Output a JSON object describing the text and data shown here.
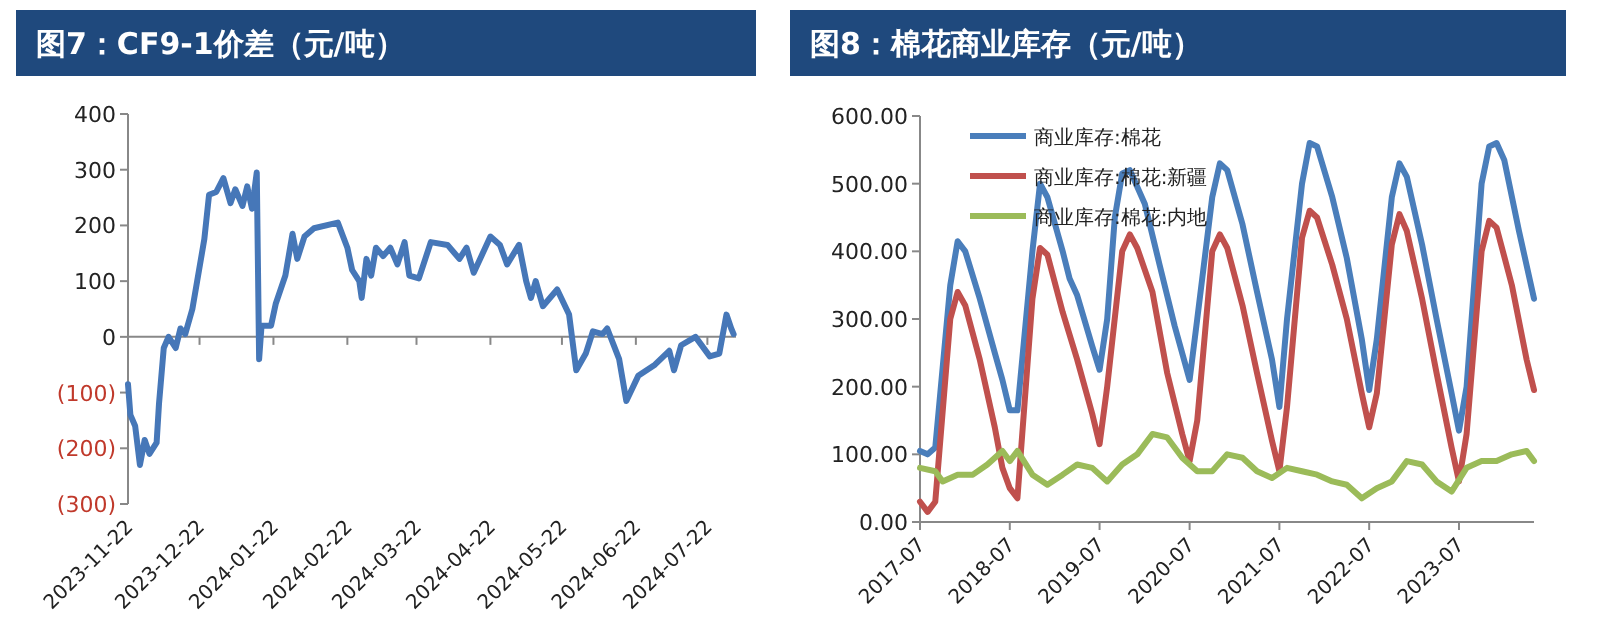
{
  "chart_data": [
    {
      "type": "line",
      "title": "图7：CF9-1价差（元/吨）",
      "x": [
        "2023-11-22",
        "2023-11-23",
        "2023-11-25",
        "2023-11-27",
        "2023-11-29",
        "2023-12-01",
        "2023-12-04",
        "2023-12-05",
        "2023-12-07",
        "2023-12-09",
        "2023-12-12",
        "2023-12-14",
        "2023-12-16",
        "2023-12-19",
        "2023-12-21",
        "2023-12-24",
        "2023-12-26",
        "2023-12-29",
        "2024-01-01",
        "2024-01-04",
        "2024-01-06",
        "2024-01-09",
        "2024-01-11",
        "2024-01-13",
        "2024-01-15",
        "2024-01-16",
        "2024-01-17",
        "2024-01-21",
        "2024-01-23",
        "2024-01-27",
        "2024-01-30",
        "2024-02-01",
        "2024-02-04",
        "2024-02-08",
        "2024-02-18",
        "2024-02-22",
        "2024-02-24",
        "2024-02-27",
        "2024-02-28",
        "2024-03-01",
        "2024-03-03",
        "2024-03-05",
        "2024-03-08",
        "2024-03-11",
        "2024-03-14",
        "2024-03-17",
        "2024-03-19",
        "2024-03-23",
        "2024-03-28",
        "2024-04-04",
        "2024-04-09",
        "2024-04-12",
        "2024-04-15",
        "2024-04-22",
        "2024-04-26",
        "2024-04-29",
        "2024-05-04",
        "2024-05-07",
        "2024-05-09",
        "2024-05-11",
        "2024-05-14",
        "2024-05-20",
        "2024-05-25",
        "2024-05-28",
        "2024-06-01",
        "2024-06-04",
        "2024-06-08",
        "2024-06-10",
        "2024-06-15",
        "2024-06-18",
        "2024-06-23",
        "2024-06-30",
        "2024-07-06",
        "2024-07-08",
        "2024-07-11",
        "2024-07-17",
        "2024-07-23",
        "2024-07-27",
        "2024-07-30",
        "2024-08-01",
        "2024-08-02"
      ],
      "series": [
        {
          "color": "#4677b8",
          "values": [
            -85,
            -140,
            -160,
            -230,
            -185,
            -210,
            -190,
            -120,
            -20,
            0,
            -20,
            15,
            5,
            50,
            100,
            175,
            255,
            260,
            285,
            240,
            265,
            235,
            270,
            230,
            295,
            -40,
            20,
            20,
            60,
            110,
            185,
            140,
            180,
            195,
            205,
            160,
            120,
            100,
            70,
            140,
            110,
            160,
            145,
            160,
            130,
            170,
            110,
            105,
            170,
            165,
            140,
            160,
            115,
            180,
            165,
            130,
            165,
            100,
            70,
            100,
            55,
            85,
            40,
            -60,
            -30,
            10,
            5,
            15,
            -40,
            -115,
            -70,
            -50,
            -25,
            -60,
            -15,
            0,
            -35,
            -30,
            40,
            15,
            5
          ]
        }
      ],
      "xlim": [
        "2023-11-22",
        "2024-08-03"
      ],
      "xticks": [
        "2023-11-22",
        "2023-12-22",
        "2024-01-22",
        "2024-02-22",
        "2024-03-22",
        "2024-04-22",
        "2024-05-22",
        "2024-06-22",
        "2024-07-22"
      ],
      "ylim": [
        -300,
        400
      ],
      "yticks": [
        {
          "value": -300,
          "label": "(300)"
        },
        {
          "value": -200,
          "label": "(200)"
        },
        {
          "value": -100,
          "label": "(100)"
        },
        0,
        100,
        200,
        300,
        400
      ]
    },
    {
      "type": "line",
      "title": "图8：棉花商业库存（元/吨）",
      "legend": "top left",
      "grid": false,
      "series": [
        {
          "name": "商业库存:棉花",
          "color": "#4a7ebb",
          "x": [
            "2017-07",
            "2017-08",
            "2017-09",
            "2017-11",
            "2017-12",
            "2018-01",
            "2018-03",
            "2018-05",
            "2018-06",
            "2018-07",
            "2018-08",
            "2018-10",
            "2018-11",
            "2018-12",
            "2019-02",
            "2019-03",
            "2019-04",
            "2019-06",
            "2019-07",
            "2019-08",
            "2019-09",
            "2019-10",
            "2019-11",
            "2020-01",
            "2020-03",
            "2020-05",
            "2020-07",
            "2020-08",
            "2020-10",
            "2020-11",
            "2020-12",
            "2021-02",
            "2021-04",
            "2021-06",
            "2021-07",
            "2021-08",
            "2021-10",
            "2021-11",
            "2021-12",
            "2022-02",
            "2022-04",
            "2022-06",
            "2022-07",
            "2022-08",
            "2022-10",
            "2022-11",
            "2022-12",
            "2023-02",
            "2023-04",
            "2023-06",
            "2023-07",
            "2023-08",
            "2023-10",
            "2023-11",
            "2023-12",
            "2024-01",
            "2024-03",
            "2024-05"
          ],
          "values": [
            105,
            100,
            110,
            350,
            415,
            400,
            330,
            250,
            210,
            165,
            165,
            400,
            500,
            480,
            400,
            360,
            335,
            260,
            225,
            300,
            450,
            515,
            520,
            470,
            380,
            290,
            210,
            300,
            480,
            530,
            520,
            440,
            340,
            240,
            170,
            300,
            500,
            560,
            555,
            480,
            390,
            270,
            195,
            270,
            480,
            530,
            510,
            410,
            300,
            190,
            135,
            200,
            500,
            555,
            560,
            535,
            430,
            330
          ]
        },
        {
          "name": "商业库存:棉花:新疆",
          "color": "#c0504d",
          "x": [
            "2017-07",
            "2017-08",
            "2017-09",
            "2017-11",
            "2017-12",
            "2018-01",
            "2018-03",
            "2018-05",
            "2018-06",
            "2018-07",
            "2018-08",
            "2018-10",
            "2018-11",
            "2018-12",
            "2019-02",
            "2019-04",
            "2019-06",
            "2019-07",
            "2019-08",
            "2019-10",
            "2019-11",
            "2019-12",
            "2020-02",
            "2020-04",
            "2020-06",
            "2020-07",
            "2020-08",
            "2020-10",
            "2020-11",
            "2020-12",
            "2021-02",
            "2021-04",
            "2021-06",
            "2021-07",
            "2021-08",
            "2021-10",
            "2021-11",
            "2021-12",
            "2022-02",
            "2022-04",
            "2022-06",
            "2022-07",
            "2022-08",
            "2022-10",
            "2022-11",
            "2022-12",
            "2023-02",
            "2023-04",
            "2023-06",
            "2023-07",
            "2023-08",
            "2023-10",
            "2023-11",
            "2023-12",
            "2024-02",
            "2024-04",
            "2024-05"
          ],
          "values": [
            30,
            15,
            30,
            300,
            340,
            320,
            240,
            140,
            80,
            50,
            35,
            330,
            405,
            395,
            310,
            240,
            160,
            115,
            200,
            400,
            425,
            405,
            340,
            220,
            130,
            90,
            150,
            400,
            425,
            405,
            320,
            220,
            120,
            75,
            170,
            420,
            460,
            450,
            380,
            300,
            190,
            140,
            190,
            410,
            455,
            430,
            330,
            220,
            110,
            60,
            130,
            400,
            445,
            435,
            350,
            240,
            195
          ]
        },
        {
          "name": "商业库存:棉花:内地",
          "color": "#9bbb59",
          "x": [
            "2017-07",
            "2017-09",
            "2017-10",
            "2017-12",
            "2018-02",
            "2018-04",
            "2018-06",
            "2018-07",
            "2018-08",
            "2018-10",
            "2018-12",
            "2019-02",
            "2019-04",
            "2019-06",
            "2019-08",
            "2019-10",
            "2019-12",
            "2020-02",
            "2020-04",
            "2020-06",
            "2020-08",
            "2020-10",
            "2020-12",
            "2021-02",
            "2021-04",
            "2021-06",
            "2021-08",
            "2021-10",
            "2021-12",
            "2022-02",
            "2022-04",
            "2022-06",
            "2022-08",
            "2022-10",
            "2022-12",
            "2023-02",
            "2023-04",
            "2023-06",
            "2023-08",
            "2023-10",
            "2023-12",
            "2024-02",
            "2024-04",
            "2024-05"
          ],
          "values": [
            80,
            75,
            60,
            70,
            70,
            85,
            105,
            90,
            105,
            70,
            55,
            70,
            85,
            80,
            60,
            85,
            100,
            130,
            125,
            95,
            75,
            75,
            100,
            95,
            75,
            65,
            80,
            75,
            70,
            60,
            55,
            35,
            50,
            60,
            90,
            85,
            60,
            45,
            80,
            90,
            90,
            100,
            105,
            90
          ]
        }
      ],
      "xlim": [
        "2017-07",
        "2024-05"
      ],
      "xticks": [
        "2017-07",
        "2018-07",
        "2019-07",
        "2020-07",
        "2021-07",
        "2022-07",
        "2023-07"
      ],
      "ylim": [
        0,
        600
      ],
      "yticks": [
        {
          "value": 0,
          "label": "0.00"
        },
        {
          "value": 100,
          "label": "100.00"
        },
        {
          "value": 200,
          "label": "200.00"
        },
        {
          "value": 300,
          "label": "300.00"
        },
        {
          "value": 400,
          "label": "400.00"
        },
        {
          "value": 500,
          "label": "500.00"
        },
        {
          "value": 600,
          "label": "600.00"
        }
      ]
    }
  ]
}
